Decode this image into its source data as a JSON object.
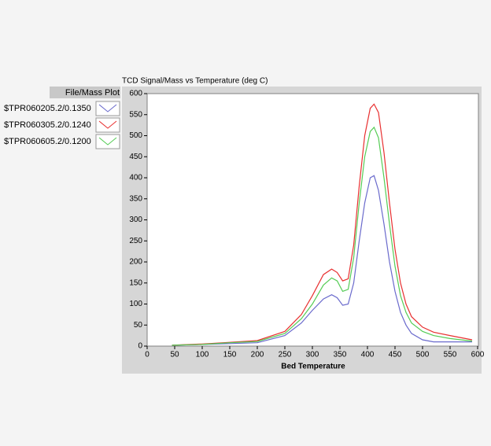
{
  "chart_data": {
    "type": "line",
    "title": "TCD Signal/Mass vs Temperature  (deg C)",
    "x_label": "Bed Temperature",
    "legend_header": "File/Mass  Plot",
    "x": [
      45,
      100,
      150,
      200,
      250,
      280,
      300,
      320,
      335,
      345,
      355,
      365,
      375,
      385,
      395,
      405,
      412,
      420,
      430,
      440,
      450,
      460,
      470,
      480,
      500,
      520,
      550,
      590
    ],
    "series": [
      {
        "name": "$TPR060205.2/0.1350",
        "color": "#6a6acc",
        "values": [
          2,
          4,
          6,
          8,
          25,
          55,
          85,
          112,
          122,
          115,
          97,
          100,
          150,
          250,
          340,
          400,
          405,
          370,
          290,
          200,
          130,
          80,
          50,
          30,
          15,
          10,
          10,
          10
        ]
      },
      {
        "name": "$TPR060305.2/0.1240",
        "color": "#e83030",
        "values": [
          2,
          5,
          9,
          13,
          35,
          75,
          120,
          170,
          183,
          175,
          155,
          160,
          240,
          380,
          500,
          565,
          575,
          555,
          460,
          340,
          230,
          150,
          100,
          70,
          45,
          33,
          25,
          15
        ]
      },
      {
        "name": "$TPR060605.2/0.1200",
        "color": "#55cc55",
        "values": [
          2,
          4,
          8,
          11,
          30,
          65,
          100,
          145,
          162,
          155,
          130,
          135,
          210,
          340,
          450,
          510,
          520,
          495,
          400,
          290,
          190,
          120,
          80,
          55,
          35,
          25,
          18,
          12
        ]
      }
    ],
    "xlim": [
      0,
      600
    ],
    "xticks": [
      0,
      50,
      100,
      150,
      200,
      250,
      300,
      350,
      400,
      450,
      500,
      550,
      600
    ],
    "ylim": [
      0,
      600
    ],
    "yticks": [
      0,
      50,
      100,
      150,
      200,
      250,
      300,
      350,
      400,
      450,
      500,
      550,
      600
    ]
  }
}
